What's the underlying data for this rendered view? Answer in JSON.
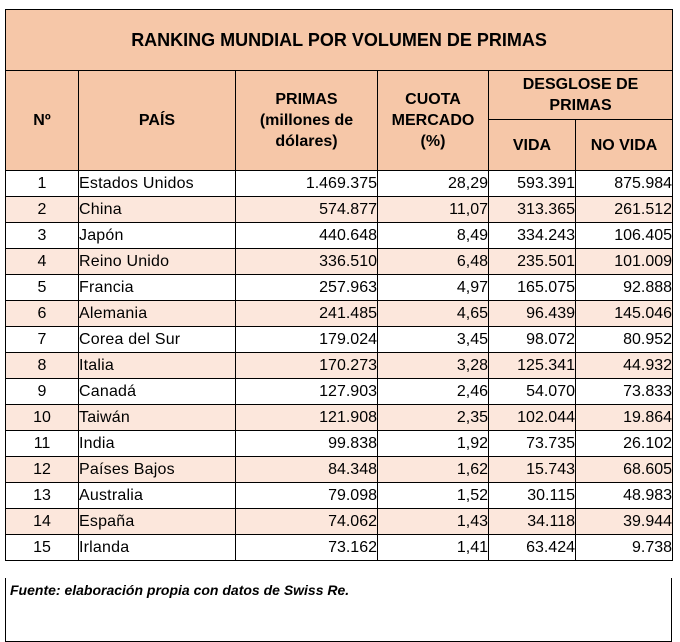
{
  "title": "RANKING MUNDIAL POR VOLUMEN DE PRIMAS",
  "headers": {
    "rank": "Nº",
    "country": "PAÍS",
    "premiums_line1": "PRIMAS",
    "premiums_line2": "(millones de",
    "premiums_line3": "dólares)",
    "share_line1": "CUOTA",
    "share_line2": "MERCADO",
    "share_line3": "(%)",
    "breakdown_line1": "DESGLOSE DE",
    "breakdown_line2": "PRIMAS",
    "life": "VIDA",
    "non_life": "NO VIDA"
  },
  "rows": [
    {
      "rank": "1",
      "country": "Estados Unidos",
      "premiums": "1.469.375",
      "share": "28,29",
      "life": "593.391",
      "non_life": "875.984"
    },
    {
      "rank": "2",
      "country": "China",
      "premiums": "574.877",
      "share": "11,07",
      "life": "313.365",
      "non_life": "261.512"
    },
    {
      "rank": "3",
      "country": "Japón",
      "premiums": "440.648",
      "share": "8,49",
      "life": "334.243",
      "non_life": "106.405"
    },
    {
      "rank": "4",
      "country": "Reino Unido",
      "premiums": "336.510",
      "share": "6,48",
      "life": "235.501",
      "non_life": "101.009"
    },
    {
      "rank": "5",
      "country": "Francia",
      "premiums": "257.963",
      "share": "4,97",
      "life": "165.075",
      "non_life": "92.888"
    },
    {
      "rank": "6",
      "country": "Alemania",
      "premiums": "241.485",
      "share": "4,65",
      "life": "96.439",
      "non_life": "145.046"
    },
    {
      "rank": "7",
      "country": "Corea del Sur",
      "premiums": "179.024",
      "share": "3,45",
      "life": "98.072",
      "non_life": "80.952"
    },
    {
      "rank": "8",
      "country": "Italia",
      "premiums": "170.273",
      "share": "3,28",
      "life": "125.341",
      "non_life": "44.932"
    },
    {
      "rank": "9",
      "country": "Canadá",
      "premiums": "127.903",
      "share": "2,46",
      "life": "54.070",
      "non_life": "73.833"
    },
    {
      "rank": "10",
      "country": "Taiwán",
      "premiums": "121.908",
      "share": "2,35",
      "life": "102.044",
      "non_life": "19.864"
    },
    {
      "rank": "11",
      "country": "India",
      "premiums": "99.838",
      "share": "1,92",
      "life": "73.735",
      "non_life": "26.102"
    },
    {
      "rank": "12",
      "country": "Países Bajos",
      "premiums": "84.348",
      "share": "1,62",
      "life": "15.743",
      "non_life": "68.605"
    },
    {
      "rank": "13",
      "country": "Australia",
      "premiums": "79.098",
      "share": "1,52",
      "life": "30.115",
      "non_life": "48.983"
    },
    {
      "rank": "14",
      "country": "España",
      "premiums": "74.062",
      "share": "1,43",
      "life": "34.118",
      "non_life": "39.944"
    },
    {
      "rank": "15",
      "country": "Irlanda",
      "premiums": "73.162",
      "share": "1,41",
      "life": "63.424",
      "non_life": "9.738"
    }
  ],
  "source": "Fuente: elaboración propia con datos de Swiss Re.",
  "colors": {
    "header_bg": "#f6c7a8",
    "alt_row_bg": "#fce7dc",
    "border": "#000000"
  }
}
